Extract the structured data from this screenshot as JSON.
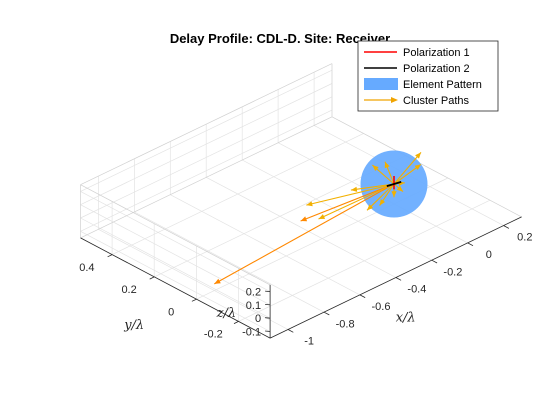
{
  "chart_data": {
    "type": "line",
    "title": "Delay Profile: CDL-D. Site: Receiver",
    "xlabel": "x/λ",
    "ylabel": "y/λ",
    "zlabel": "z/λ",
    "xlim": [
      -1.1,
      0.3
    ],
    "ylim": [
      -0.35,
      0.55
    ],
    "zlim": [
      -0.15,
      0.25
    ],
    "xticks": [
      -1,
      -0.8,
      -0.6,
      -0.4,
      -0.2,
      0,
      0.2
    ],
    "xticklabels": [
      "-1",
      "-0.8",
      "-0.6",
      "-0.4",
      "-0.2",
      "0",
      "0.2"
    ],
    "yticks": [
      -0.2,
      0,
      0.2,
      0.4
    ],
    "yticklabels": [
      "-0.2",
      "0",
      "0.2",
      "0.4"
    ],
    "zticks": [
      -0.1,
      0,
      0.1,
      0.2
    ],
    "zticklabels": [
      "-0.1",
      "0",
      "0.1",
      "0.2"
    ],
    "grid": true,
    "legend_position": "top-right",
    "legend": [
      {
        "label": "Polarization 1",
        "kind": "line",
        "color": "#ff0000"
      },
      {
        "label": "Polarization 2",
        "kind": "line",
        "color": "#000000"
      },
      {
        "label": "Element Pattern",
        "kind": "patch",
        "color": "#66aaff"
      },
      {
        "label": "Cluster Paths",
        "kind": "arrow",
        "color": "#f0a400"
      }
    ],
    "colors": {
      "polarization1": "#ff0000",
      "polarization2": "#000000",
      "element_pattern": "#66aaff",
      "cluster_paths_weak": "#f2b000",
      "cluster_paths_strong": "#ff8800"
    },
    "element_pattern": {
      "center": [
        0,
        0,
        0
      ],
      "radius": 0.12
    },
    "polarization1": [
      [
        0,
        0,
        -0.04
      ],
      [
        0,
        0,
        0.06
      ]
    ],
    "polarization2": [
      [
        -0.04,
        0,
        0.01
      ],
      [
        0.04,
        0,
        -0.01
      ]
    ],
    "cluster_paths": [
      {
        "end": [
          -1.0,
          0.0,
          -0.1
        ],
        "strong": true
      },
      {
        "end": [
          -0.52,
          0.0,
          0.06
        ],
        "strong": true
      },
      {
        "end": [
          -0.24,
          0.0,
          0.11
        ],
        "strong": false
      },
      {
        "end": [
          -0.5,
          -0.01,
          0.175
        ],
        "strong": false
      },
      {
        "end": [
          -0.42,
          0.0,
          0.01
        ],
        "strong": false
      },
      {
        "end": [
          -0.12,
          0.0,
          0.22
        ],
        "strong": false
      },
      {
        "end": [
          -0.05,
          0.0,
          0.2
        ],
        "strong": false
      },
      {
        "end": [
          0.15,
          0.0,
          0.14
        ],
        "strong": false
      },
      {
        "end": [
          0.15,
          0.0,
          0.05
        ],
        "strong": false
      },
      {
        "end": [
          0.05,
          0.0,
          -0.09
        ],
        "strong": false
      },
      {
        "end": [
          0.0,
          0.0,
          -0.1
        ],
        "strong": false
      },
      {
        "end": [
          -0.08,
          0.0,
          -0.11
        ],
        "strong": false
      },
      {
        "end": [
          -0.15,
          0.0,
          -0.1
        ],
        "strong": false
      },
      {
        "end": [
          0.06,
          0.0,
          -0.03
        ],
        "strong": false
      }
    ]
  }
}
